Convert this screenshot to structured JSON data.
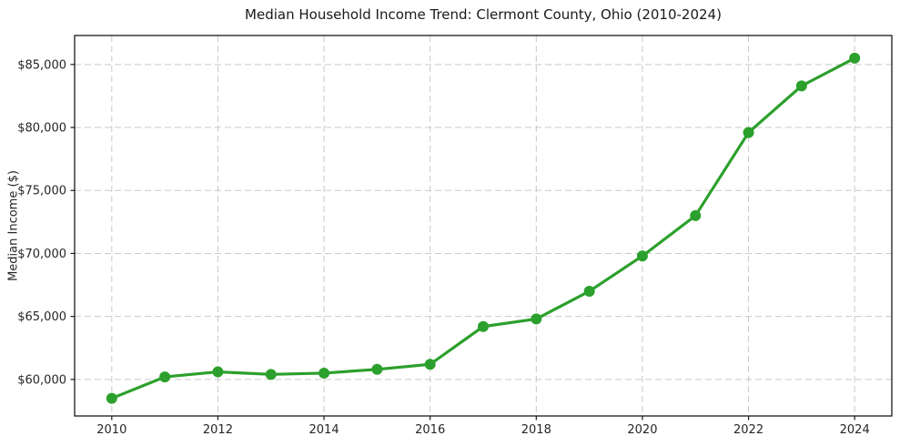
{
  "chart_data": {
    "type": "line",
    "title": "Median Household Income Trend: Clermont County, Ohio (2010-2024)",
    "xlabel": "",
    "ylabel": "Median Income ($)",
    "x": [
      2010,
      2011,
      2012,
      2013,
      2014,
      2015,
      2016,
      2017,
      2018,
      2019,
      2020,
      2021,
      2022,
      2023,
      2024
    ],
    "values": [
      58500,
      60200,
      60600,
      60400,
      60500,
      60800,
      61200,
      64200,
      64800,
      67000,
      69800,
      73000,
      79600,
      83300,
      85500
    ],
    "series_name": "Median household income",
    "x_ticks": {
      "values": [
        2010,
        2012,
        2014,
        2016,
        2018,
        2020,
        2022,
        2024
      ],
      "labels": [
        "2010",
        "2012",
        "2014",
        "2016",
        "2018",
        "2020",
        "2022",
        "2024"
      ]
    },
    "y_ticks": {
      "values": [
        60000,
        65000,
        70000,
        75000,
        80000,
        85000
      ],
      "labels": [
        "$60,000",
        "$65,000",
        "$70,000",
        "$75,000",
        "$80,000",
        "$85,000"
      ]
    },
    "xlim": [
      2009.3,
      2024.7
    ],
    "ylim": [
      57100,
      87300
    ],
    "grid": true,
    "grid_style": "dashed",
    "legend": "none",
    "colors": {
      "line": "#2ca02c",
      "marker": "#2ca02c",
      "grid": "#c9c9c9",
      "spine": "#1a1a1a",
      "text": "#262626",
      "background": "#ffffff"
    }
  }
}
